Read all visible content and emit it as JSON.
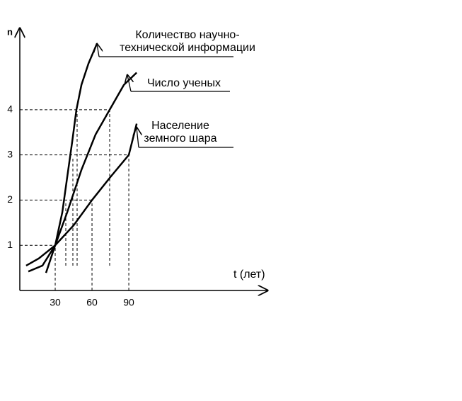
{
  "chart_data": {
    "type": "line",
    "y_label": "n",
    "x_label": "t (лет)",
    "xlim": [
      0,
      203
    ],
    "ylim": [
      0,
      5.8
    ],
    "xticks": [
      30,
      60,
      90
    ],
    "yticks": [
      1,
      2,
      3,
      4
    ],
    "series": [
      {
        "color": "#000000",
        "x": [
          22.5,
          30,
          35.8,
          39.8,
          43.9,
          47.3,
          51.4,
          57.1,
          64
        ],
        "values": [
          0.39,
          1.0,
          1.73,
          2.51,
          3.3,
          4.0,
          4.55,
          5.02,
          5.46
        ]
      },
      {
        "color": "#000000",
        "x": [
          8.1,
          19.6,
          30,
          39.8,
          51.4,
          62.9,
          74.4,
          86,
          96.4
        ],
        "values": [
          0.42,
          0.55,
          1.0,
          1.73,
          2.67,
          3.45,
          4.0,
          4.55,
          4.82
        ]
      },
      {
        "color": "#000000",
        "x": [
          6.3,
          16.7,
          30,
          45,
          60,
          75,
          90,
          96.4
        ],
        "values": [
          0.55,
          0.71,
          1.0,
          1.44,
          2.0,
          2.51,
          3.0,
          3.69
        ]
      }
    ],
    "annotations": [
      {
        "lines": [
          "Количество научно-",
          "технической информации"
        ]
      },
      {
        "lines": [
          "Число ученых"
        ]
      },
      {
        "lines": [
          "Население",
          "земного шара"
        ]
      }
    ]
  }
}
